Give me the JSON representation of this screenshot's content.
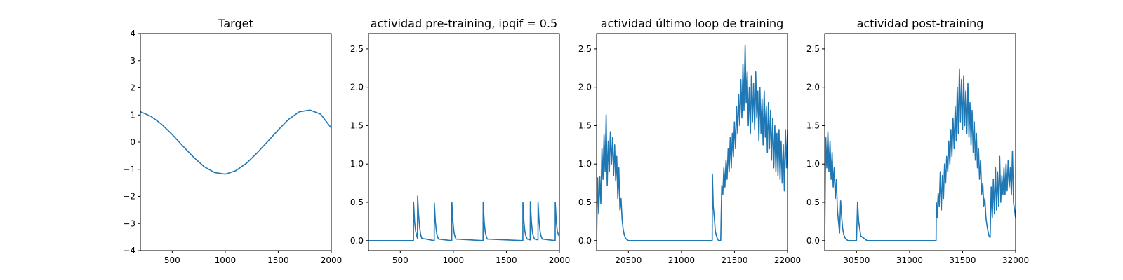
{
  "chart_data": [
    {
      "type": "line",
      "title": "Target",
      "xlabel": "",
      "ylabel": "",
      "xlim": [
        200,
        2000
      ],
      "ylim": [
        -4,
        4
      ],
      "xticks": [
        500,
        1000,
        1500,
        2000
      ],
      "yticks": [
        -4,
        -3,
        -2,
        -1,
        0,
        1,
        2,
        3,
        4
      ],
      "xtick_labels": [
        "500",
        "1000",
        "1500",
        "2000"
      ],
      "ytick_labels": [
        "−4",
        "−3",
        "−2",
        "−1",
        "0",
        "1",
        "2",
        "3",
        "4"
      ],
      "grid": false,
      "series": [
        {
          "color": "#1f77b4",
          "x": [
            200,
            300,
            400,
            500,
            600,
            700,
            800,
            900,
            1000,
            1100,
            1200,
            1300,
            1400,
            1500,
            1600,
            1700,
            1800,
            1900,
            2000
          ],
          "y": [
            1.12,
            0.95,
            0.66,
            0.28,
            -0.14,
            -0.55,
            -0.9,
            -1.12,
            -1.18,
            -1.05,
            -0.78,
            -0.4,
            0.02,
            0.45,
            0.85,
            1.12,
            1.18,
            1.03,
            0.52
          ]
        }
      ]
    },
    {
      "type": "line",
      "title": "actividad pre-training, ipqif = 0.5",
      "xlabel": "",
      "ylabel": "",
      "xlim": [
        200,
        2000
      ],
      "ylim": [
        -0.13,
        2.7
      ],
      "xticks": [
        500,
        1000,
        1500,
        2000
      ],
      "yticks": [
        0.0,
        0.5,
        1.0,
        1.5,
        2.0,
        2.5
      ],
      "xtick_labels": [
        "500",
        "1000",
        "1500",
        "2000"
      ],
      "ytick_labels": [
        "0.0",
        "0.5",
        "1.0",
        "1.5",
        "2.0",
        "2.5"
      ],
      "grid": false,
      "series": [
        {
          "color": "#1f77b4",
          "x": [
            200,
            624,
            625,
            635,
            645,
            655,
            662,
            663,
            672,
            682,
            692,
            702,
            820,
            821,
            831,
            841,
            851,
            861,
            985,
            986,
            996,
            1006,
            1016,
            1026,
            1280,
            1281,
            1291,
            1301,
            1311,
            1321,
            1655,
            1656,
            1666,
            1676,
            1686,
            1696,
            1725,
            1726,
            1736,
            1746,
            1756,
            1766,
            1798,
            1799,
            1809,
            1819,
            1829,
            1839,
            1960,
            1961,
            1971,
            1981,
            1991,
            2000
          ],
          "y": [
            0.0,
            0.0,
            0.5,
            0.25,
            0.12,
            0.06,
            0.03,
            0.58,
            0.35,
            0.18,
            0.08,
            0.03,
            0.0,
            0.49,
            0.24,
            0.11,
            0.05,
            0.02,
            0.0,
            0.5,
            0.25,
            0.11,
            0.05,
            0.02,
            0.0,
            0.5,
            0.24,
            0.11,
            0.05,
            0.02,
            0.0,
            0.5,
            0.24,
            0.11,
            0.05,
            0.02,
            0.01,
            0.51,
            0.25,
            0.11,
            0.05,
            0.02,
            0.01,
            0.5,
            0.25,
            0.11,
            0.05,
            0.02,
            0.0,
            0.5,
            0.24,
            0.12,
            0.08,
            0.05
          ]
        }
      ]
    },
    {
      "type": "line",
      "title": "actividad último loop de training",
      "xlabel": "",
      "ylabel": "",
      "xlim": [
        20200,
        22000
      ],
      "ylim": [
        -0.13,
        2.7
      ],
      "xticks": [
        20500,
        21000,
        21500,
        22000
      ],
      "yticks": [
        0.0,
        0.5,
        1.0,
        1.5,
        2.0,
        2.5
      ],
      "xtick_labels": [
        "20500",
        "21000",
        "21500",
        "22000"
      ],
      "ytick_labels": [
        "0.0",
        "0.5",
        "1.0",
        "1.5",
        "2.0",
        "2.5"
      ],
      "grid": false,
      "series": [
        {
          "color": "#1f77b4",
          "x": [
            20200,
            20210,
            20220,
            20230,
            20240,
            20250,
            20260,
            20270,
            20280,
            20290,
            20300,
            20310,
            20320,
            20330,
            20340,
            20350,
            20360,
            20370,
            20380,
            20390,
            20400,
            20410,
            20420,
            20430,
            20440,
            20450,
            20460,
            20470,
            20480,
            20500,
            20530,
            20600,
            21290,
            21292,
            21300,
            21310,
            21320,
            21330,
            21340,
            21350,
            21370,
            21380,
            21390,
            21400,
            21410,
            21420,
            21430,
            21440,
            21450,
            21460,
            21470,
            21480,
            21490,
            21500,
            21510,
            21520,
            21530,
            21540,
            21550,
            21560,
            21570,
            21580,
            21590,
            21600,
            21610,
            21620,
            21630,
            21640,
            21650,
            21660,
            21670,
            21680,
            21690,
            21700,
            21710,
            21720,
            21730,
            21740,
            21750,
            21760,
            21770,
            21780,
            21790,
            21800,
            21810,
            21820,
            21830,
            21840,
            21850,
            21860,
            21870,
            21880,
            21890,
            21900,
            21910,
            21920,
            21930,
            21940,
            21950,
            21960,
            21970,
            21980,
            21990,
            22000
          ],
          "y": [
            0.0,
            0.82,
            0.35,
            0.84,
            0.48,
            1.2,
            0.8,
            1.38,
            0.9,
            1.64,
            0.72,
            1.3,
            0.9,
            1.42,
            1.0,
            1.35,
            0.85,
            1.25,
            0.78,
            1.1,
            0.55,
            0.95,
            0.4,
            0.55,
            0.28,
            0.15,
            0.08,
            0.04,
            0.02,
            0.0,
            0.0,
            0.0,
            0.0,
            0.87,
            0.45,
            0.3,
            0.12,
            0.06,
            0.02,
            0.0,
            0.0,
            0.72,
            0.6,
            0.95,
            0.7,
            1.05,
            0.8,
            1.2,
            0.9,
            1.35,
            0.95,
            1.4,
            1.1,
            1.55,
            1.2,
            1.75,
            1.4,
            1.9,
            1.5,
            2.1,
            1.6,
            2.3,
            1.7,
            2.55,
            1.8,
            2.2,
            1.5,
            2.0,
            1.4,
            2.15,
            1.55,
            2.05,
            1.45,
            2.2,
            1.6,
            1.95,
            1.3,
            2.0,
            1.4,
            1.85,
            1.25,
            1.95,
            1.35,
            1.75,
            1.15,
            1.8,
            1.2,
            1.7,
            1.05,
            1.6,
            0.95,
            1.5,
            0.9,
            1.4,
            0.85,
            1.45,
            0.8,
            1.3,
            0.75,
            1.25,
            0.65,
            1.45,
            0.95,
            1.45
          ]
        }
      ]
    },
    {
      "type": "line",
      "title": "actividad post-training",
      "xlabel": "",
      "ylabel": "",
      "xlim": [
        30200,
        32000
      ],
      "ylim": [
        -0.13,
        2.7
      ],
      "xticks": [
        30500,
        31000,
        31500,
        32000
      ],
      "yticks": [
        0.0,
        0.5,
        1.0,
        1.5,
        2.0,
        2.5
      ],
      "xtick_labels": [
        "30500",
        "31000",
        "31500",
        "32000"
      ],
      "ytick_labels": [
        "0.0",
        "0.5",
        "1.0",
        "1.5",
        "2.0",
        "2.5"
      ],
      "grid": false,
      "series": [
        {
          "color": "#1f77b4",
          "x": [
            30200,
            30210,
            30220,
            30230,
            30240,
            30250,
            30260,
            30270,
            30280,
            30290,
            30300,
            30310,
            30320,
            30330,
            30340,
            30350,
            30360,
            30370,
            30380,
            30390,
            30400,
            30410,
            30420,
            30430,
            30440,
            30450,
            30460,
            30470,
            30480,
            30490,
            30500,
            30510,
            30520,
            30540,
            30600,
            31250,
            31252,
            31260,
            31270,
            31280,
            31290,
            31300,
            31310,
            31320,
            31330,
            31340,
            31350,
            31360,
            31370,
            31380,
            31390,
            31400,
            31410,
            31420,
            31430,
            31440,
            31450,
            31460,
            31470,
            31480,
            31490,
            31500,
            31510,
            31520,
            31530,
            31540,
            31550,
            31560,
            31570,
            31580,
            31590,
            31600,
            31610,
            31620,
            31630,
            31640,
            31650,
            31660,
            31670,
            31680,
            31690,
            31700,
            31710,
            31720,
            31730,
            31740,
            31750,
            31760,
            31770,
            31780,
            31790,
            31800,
            31810,
            31820,
            31830,
            31840,
            31850,
            31860,
            31870,
            31880,
            31890,
            31900,
            31910,
            31920,
            31930,
            31940,
            31950,
            31960,
            31970,
            31980,
            31990,
            32000
          ],
          "y": [
            0.0,
            1.35,
            0.95,
            1.42,
            0.9,
            1.3,
            0.8,
            1.15,
            0.7,
            0.95,
            0.55,
            0.8,
            0.4,
            0.25,
            0.1,
            0.52,
            0.3,
            0.15,
            0.08,
            0.04,
            0.02,
            0.01,
            0.0,
            0.0,
            0.0,
            0.0,
            0.0,
            0.0,
            0.0,
            0.0,
            0.0,
            0.5,
            0.25,
            0.06,
            0.0,
            0.0,
            0.5,
            0.3,
            0.62,
            0.45,
            0.9,
            0.4,
            0.85,
            0.55,
            1.0,
            0.75,
            1.1,
            0.9,
            1.3,
            1.0,
            1.45,
            1.1,
            1.6,
            1.2,
            1.75,
            1.3,
            2.0,
            1.4,
            2.24,
            1.55,
            2.1,
            1.45,
            2.15,
            1.5,
            1.95,
            1.4,
            2.05,
            1.35,
            1.8,
            1.25,
            1.7,
            1.15,
            1.55,
            1.05,
            1.4,
            0.95,
            1.2,
            0.8,
            1.05,
            0.6,
            0.75,
            0.45,
            0.55,
            0.3,
            0.2,
            0.12,
            0.06,
            0.04,
            0.7,
            0.3,
            0.8,
            0.35,
            0.95,
            0.4,
            0.9,
            0.45,
            1.1,
            0.5,
            0.85,
            0.6,
            0.95,
            0.6,
            1.0,
            0.65,
            1.05,
            0.7,
            0.95,
            0.6,
            1.17,
            0.5,
            0.4,
            0.3
          ]
        }
      ]
    }
  ]
}
